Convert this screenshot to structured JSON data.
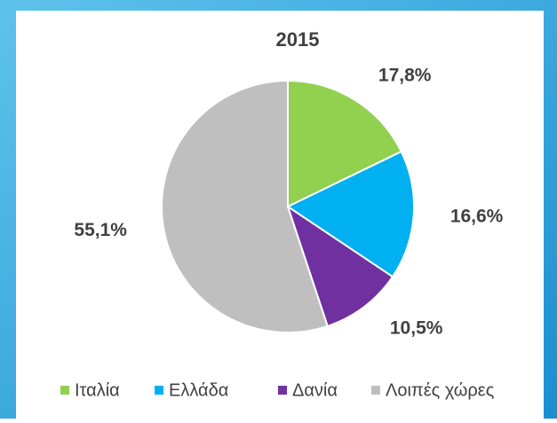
{
  "chart_data": {
    "type": "pie",
    "title": "2015",
    "categories": [
      "Ιταλία",
      "Ελλάδα",
      "Δανία",
      "Λοιπές χώρες"
    ],
    "values": [
      17.8,
      16.6,
      10.5,
      55.1
    ],
    "value_labels": [
      "17,8%",
      "16,6%",
      "10,5%",
      "55,1%"
    ],
    "colors": [
      "#92d050",
      "#00b0f0",
      "#7030a0",
      "#bfbfbf"
    ],
    "legend": "bottom"
  }
}
